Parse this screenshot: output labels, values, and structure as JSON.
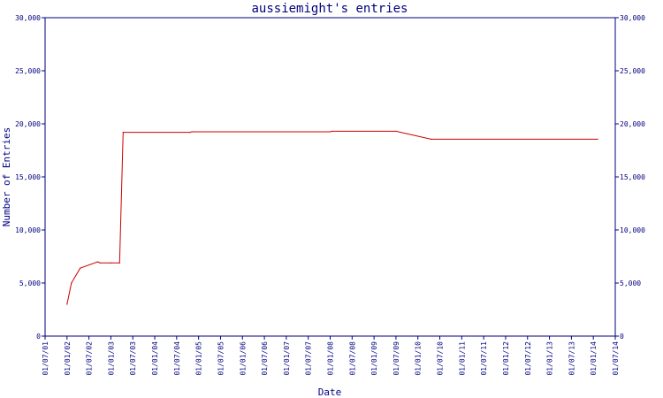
{
  "chart_data": {
    "type": "line",
    "title": "aussiemight's entries",
    "xlabel": "Date",
    "ylabel": "Number of Entries",
    "ylim": [
      0,
      30000
    ],
    "y_ticks": [
      "0",
      "5,000",
      "10,000",
      "15,000",
      "20,000",
      "25,000",
      "30,000"
    ],
    "y_tick_values": [
      0,
      5000,
      10000,
      15000,
      20000,
      25000,
      30000
    ],
    "x_ticks": [
      "01/07/01",
      "01/01/02",
      "01/07/02",
      "01/01/03",
      "01/07/03",
      "01/01/04",
      "01/07/04",
      "01/01/05",
      "01/07/05",
      "01/01/06",
      "01/07/06",
      "01/01/07",
      "01/07/07",
      "01/01/08",
      "01/07/08",
      "01/01/09",
      "01/07/09",
      "01/01/10",
      "01/07/10",
      "01/01/11",
      "01/07/11",
      "01/01/12",
      "01/07/12",
      "01/01/13",
      "01/07/13",
      "01/01/14",
      "01/07/14"
    ],
    "x_tick_values": [
      2001.5,
      2002.0,
      2002.5,
      2003.0,
      2003.5,
      2004.0,
      2004.5,
      2005.0,
      2005.5,
      2006.0,
      2006.5,
      2007.0,
      2007.5,
      2008.0,
      2008.5,
      2009.0,
      2009.5,
      2010.0,
      2010.5,
      2011.0,
      2011.5,
      2012.0,
      2012.5,
      2013.0,
      2013.5,
      2014.0,
      2014.5
    ],
    "xlim": [
      2001.5,
      2014.5
    ],
    "grid": false,
    "series": [
      {
        "color": "#cc0000",
        "x": [
          2002.0,
          2002.1,
          2002.3,
          2002.7,
          2002.75,
          2003.0,
          2003.2,
          2003.28,
          2004.8,
          2004.85,
          2008.0,
          2008.05,
          2009.5,
          2010.3,
          2014.1
        ],
        "y": [
          3000,
          5000,
          6400,
          7000,
          6900,
          6900,
          6900,
          19200,
          19200,
          19250,
          19250,
          19300,
          19300,
          18550,
          18550
        ]
      }
    ]
  }
}
